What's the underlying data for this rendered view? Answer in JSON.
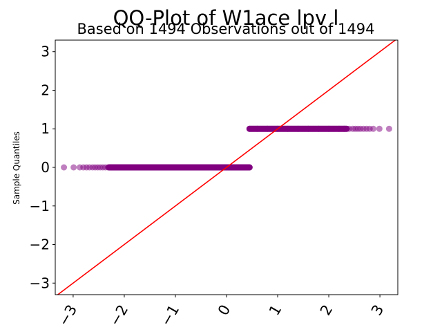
{
  "chart_data": {
    "type": "scatter",
    "title": "QQ-Plot of W1ace lpv l",
    "subtitle": "Based on 1494 Observations out of 1494",
    "xlabel": "",
    "ylabel": "Sample Quantiles",
    "xlim": [
      -3.35,
      3.35
    ],
    "ylim": [
      -3.3,
      3.3
    ],
    "x_ticks": [
      -3,
      -2,
      -1,
      0,
      1,
      2,
      3
    ],
    "x_tick_labels": [
      "−3",
      "−2",
      "−1",
      "0",
      "1",
      "2",
      "3"
    ],
    "y_ticks": [
      -3,
      -2,
      -1,
      0,
      1,
      2,
      3
    ],
    "y_tick_labels": [
      "−3",
      "−2",
      "−1",
      "0",
      "1",
      "2",
      "3"
    ],
    "grid": false,
    "colors": {
      "points": "#800080",
      "reference_line": "#ff0000",
      "axes": "#000000"
    },
    "reference_line": {
      "x": [
        -3.35,
        3.35
      ],
      "y": [
        -3.35,
        3.35
      ]
    },
    "series": [
      {
        "x": [
          -3.18,
          -2.99,
          -2.87,
          -2.8,
          -2.74,
          -2.68,
          -2.62,
          -2.57,
          -2.52,
          -2.47,
          -2.42,
          -2.37,
          -2.32,
          -2.27,
          -2.2,
          -2.1,
          -2.0,
          -1.8,
          -1.6,
          -1.4,
          -1.2,
          -1.0,
          -0.8,
          -0.6,
          -0.4,
          -0.2,
          0.0,
          0.2,
          0.35,
          0.45
        ],
        "y": [
          0,
          0,
          0,
          0,
          0,
          0,
          0,
          0,
          0,
          0,
          0,
          0,
          0,
          0,
          0,
          0,
          0,
          0,
          0,
          0,
          0,
          0,
          0,
          0,
          0,
          0,
          0,
          0,
          0,
          0
        ]
      },
      {
        "x": [
          0.45,
          0.6,
          0.8,
          1.0,
          1.2,
          1.4,
          1.6,
          1.8,
          2.0,
          2.2,
          2.3,
          2.4,
          2.47,
          2.52,
          2.57,
          2.62,
          2.68,
          2.74,
          2.8,
          2.87,
          2.99,
          3.18
        ],
        "y": [
          1,
          1,
          1,
          1,
          1,
          1,
          1,
          1,
          1,
          1,
          1,
          1,
          1,
          1,
          1,
          1,
          1,
          1,
          1,
          1,
          1,
          1
        ]
      }
    ]
  }
}
